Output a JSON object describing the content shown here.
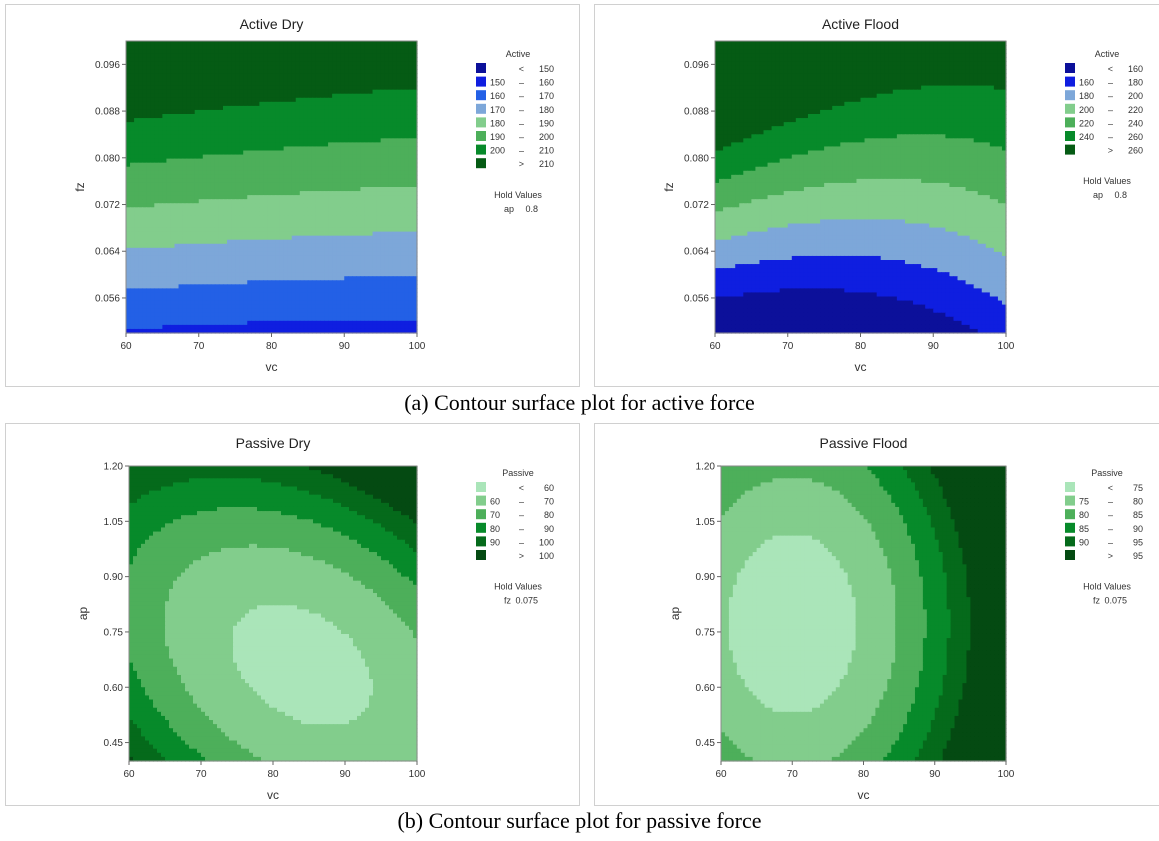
{
  "captions": {
    "a": "(a) Contour surface plot for active force",
    "b": "(b) Contour surface plot for passive force"
  },
  "chart_data": [
    {
      "type": "contour",
      "title": "Active Dry",
      "xlabel": "vc",
      "ylabel": "fz",
      "xlim": [
        60,
        100
      ],
      "ylim": [
        0.05,
        0.1
      ],
      "xticks": [
        "60",
        "70",
        "80",
        "90",
        "100"
      ],
      "yticks": [
        {
          "v": 0.056,
          "t": "0.056"
        },
        {
          "v": 0.064,
          "t": "0.064"
        },
        {
          "v": 0.072,
          "t": "0.072"
        },
        {
          "v": 0.08,
          "t": "0.080"
        },
        {
          "v": 0.088,
          "t": "0.088"
        },
        {
          "v": 0.096,
          "t": "0.096"
        }
      ],
      "legend": {
        "title": "Active",
        "items": [
          {
            "lo": "<",
            "hi": "150",
            "color": "#0c109a"
          },
          {
            "lo": "150",
            "hi": "160",
            "color": "#0f1ee0"
          },
          {
            "lo": "160",
            "hi": "170",
            "color": "#2360e6"
          },
          {
            "lo": "170",
            "hi": "180",
            "color": "#7da7d9"
          },
          {
            "lo": "180",
            "hi": "190",
            "color": "#82cd8c"
          },
          {
            "lo": "190",
            "hi": "200",
            "color": "#4daf5a"
          },
          {
            "lo": "200",
            "hi": "210",
            "color": "#078a2a"
          },
          {
            "lo": ">",
            "hi": "210",
            "color": "#055b14"
          }
        ]
      },
      "hold": {
        "title": "Hold Values",
        "name": "ap",
        "value": "0.8"
      },
      "levels": [
        150,
        160,
        170,
        180,
        190,
        200,
        210
      ],
      "model": {
        "kind": "quad",
        "c": [
          191.8,
          -2.6,
          0.6,
          32.55,
          -2.0,
          -1.5
        ]
      }
    },
    {
      "type": "contour",
      "title": "Active Flood",
      "xlabel": "vc",
      "ylabel": "fz",
      "xlim": [
        60,
        100
      ],
      "ylim": [
        0.05,
        0.1
      ],
      "xticks": [
        "60",
        "70",
        "80",
        "90",
        "100"
      ],
      "yticks": [
        {
          "v": 0.056,
          "t": "0.056"
        },
        {
          "v": 0.064,
          "t": "0.064"
        },
        {
          "v": 0.072,
          "t": "0.072"
        },
        {
          "v": 0.08,
          "t": "0.080"
        },
        {
          "v": 0.088,
          "t": "0.088"
        },
        {
          "v": 0.096,
          "t": "0.096"
        }
      ],
      "legend": {
        "title": "Active",
        "items": [
          {
            "lo": "<",
            "hi": "160",
            "color": "#0c109a"
          },
          {
            "lo": "160",
            "hi": "180",
            "color": "#0f1ee0"
          },
          {
            "lo": "180",
            "hi": "200",
            "color": "#7da7d9"
          },
          {
            "lo": "200",
            "hi": "220",
            "color": "#82cd8c"
          },
          {
            "lo": "220",
            "hi": "240",
            "color": "#4daf5a"
          },
          {
            "lo": "240",
            "hi": "260",
            "color": "#078a2a"
          },
          {
            "lo": ">",
            "hi": "260",
            "color": "#055b14"
          }
        ]
      },
      "hold": {
        "title": "Hold Values",
        "name": "ap",
        "value": "0.8"
      },
      "levels": [
        160,
        180,
        200,
        220,
        240,
        260
      ],
      "model": {
        "kind": "quad",
        "c": [
          216.75,
          -5.25,
          15.0,
          75.2,
          -5.0,
          -21.5
        ]
      }
    },
    {
      "type": "contour",
      "title": "Passive Dry",
      "xlabel": "vc",
      "ylabel": "ap",
      "xlim": [
        60,
        100
      ],
      "ylim": [
        0.4,
        1.2
      ],
      "xticks": [
        "60",
        "70",
        "80",
        "90",
        "100"
      ],
      "yticks": [
        {
          "v": 0.45,
          "t": "0.45"
        },
        {
          "v": 0.6,
          "t": "0.60"
        },
        {
          "v": 0.75,
          "t": "0.75"
        },
        {
          "v": 0.9,
          "t": "0.90"
        },
        {
          "v": 1.05,
          "t": "1.05"
        },
        {
          "v": 1.2,
          "t": "1.20"
        }
      ],
      "legend": {
        "title": "Passive",
        "items": [
          {
            "lo": "<",
            "hi": "60",
            "color": "#aae5b9"
          },
          {
            "lo": "60",
            "hi": "70",
            "color": "#82cd8c"
          },
          {
            "lo": "70",
            "hi": "80",
            "color": "#4daf5a"
          },
          {
            "lo": "80",
            "hi": "90",
            "color": "#078a2a"
          },
          {
            "lo": "90",
            "hi": "100",
            "color": "#056a1b"
          },
          {
            "lo": ">",
            "hi": "100",
            "color": "#044a12"
          }
        ]
      },
      "hold": {
        "title": "Hold Values",
        "name": "fz",
        "value": "0.075"
      },
      "levels": [
        60,
        70,
        80,
        90,
        100
      ],
      "model": {
        "kind": "ellipse",
        "c": [
          56.5,
          0.2,
          -0.35,
          17.0,
          23.7,
          14.4
        ]
      }
    },
    {
      "type": "contour",
      "title": "Passive Flood",
      "xlabel": "vc",
      "ylabel": "ap",
      "xlim": [
        60,
        100
      ],
      "ylim": [
        0.4,
        1.2
      ],
      "xticks": [
        "60",
        "70",
        "80",
        "90",
        "100"
      ],
      "yticks": [
        {
          "v": 0.45,
          "t": "0.45"
        },
        {
          "v": 0.6,
          "t": "0.60"
        },
        {
          "v": 0.75,
          "t": "0.75"
        },
        {
          "v": 0.9,
          "t": "0.90"
        },
        {
          "v": 1.05,
          "t": "1.05"
        },
        {
          "v": 1.2,
          "t": "1.20"
        }
      ],
      "legend": {
        "title": "Passive",
        "items": [
          {
            "lo": "<",
            "hi": "75",
            "color": "#aae5b9"
          },
          {
            "lo": "75",
            "hi": "80",
            "color": "#82cd8c"
          },
          {
            "lo": "80",
            "hi": "85",
            "color": "#4daf5a"
          },
          {
            "lo": "85",
            "hi": "90",
            "color": "#078a2a"
          },
          {
            "lo": "90",
            "hi": "95",
            "color": "#056a1b"
          },
          {
            "lo": ">",
            "hi": "95",
            "color": "#044a12"
          }
        ]
      },
      "hold": {
        "title": "Hold Values",
        "name": "fz",
        "value": "0.075"
      },
      "levels": [
        75,
        80,
        85,
        90,
        95
      ],
      "model": {
        "kind": "ellipse",
        "c": [
          72.0,
          -0.5,
          -0.07,
          14.9,
          8.1,
          0.0
        ]
      }
    }
  ]
}
